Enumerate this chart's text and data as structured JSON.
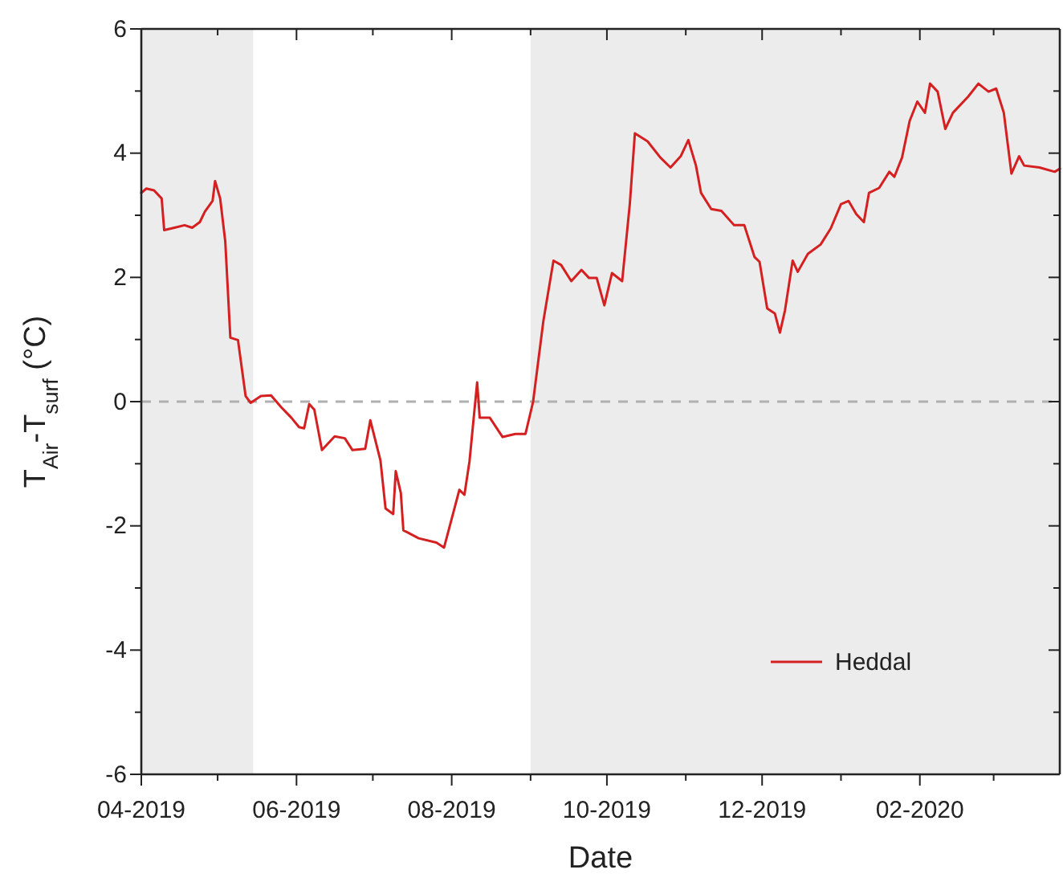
{
  "chart_data": {
    "type": "line",
    "xlabel": "Date",
    "ylabel": "T$_{Air}$-T$_{surf}$ (°C)",
    "x": [
      "2019-04-01",
      "2019-04-03",
      "2019-04-06",
      "2019-04-09",
      "2019-04-10",
      "2019-04-14",
      "2019-04-18",
      "2019-04-21",
      "2019-04-24",
      "2019-04-26",
      "2019-04-29",
      "2019-04-30",
      "2019-05-02",
      "2019-05-04",
      "2019-05-06",
      "2019-05-09",
      "2019-05-12",
      "2019-05-14",
      "2019-05-18",
      "2019-05-22",
      "2019-05-26",
      "2019-05-30",
      "2019-06-02",
      "2019-06-04",
      "2019-06-06",
      "2019-06-08",
      "2019-06-11",
      "2019-06-16",
      "2019-06-20",
      "2019-06-23",
      "2019-06-28",
      "2019-06-30",
      "2019-07-04",
      "2019-07-06",
      "2019-07-09",
      "2019-07-10",
      "2019-07-12",
      "2019-07-13",
      "2019-07-19",
      "2019-07-26",
      "2019-07-29",
      "2019-08-02",
      "2019-08-04",
      "2019-08-06",
      "2019-08-08",
      "2019-08-11",
      "2019-08-12",
      "2019-08-16",
      "2019-08-21",
      "2019-08-26",
      "2019-08-30",
      "2019-09-02",
      "2019-09-06",
      "2019-09-10",
      "2019-09-13",
      "2019-09-17",
      "2019-09-21",
      "2019-09-24",
      "2019-09-27",
      "2019-09-30",
      "2019-10-03",
      "2019-10-07",
      "2019-10-10",
      "2019-10-12",
      "2019-10-17",
      "2019-10-22",
      "2019-10-26",
      "2019-10-30",
      "2019-11-02",
      "2019-11-05",
      "2019-11-07",
      "2019-11-11",
      "2019-11-15",
      "2019-11-20",
      "2019-11-24",
      "2019-11-28",
      "2019-11-30",
      "2019-12-03",
      "2019-12-06",
      "2019-12-08",
      "2019-12-10",
      "2019-12-13",
      "2019-12-15",
      "2019-12-19",
      "2019-12-24",
      "2019-12-28",
      "2020-01-01",
      "2020-01-04",
      "2020-01-07",
      "2020-01-10",
      "2020-01-12",
      "2020-01-16",
      "2020-01-20",
      "2020-01-22",
      "2020-01-25",
      "2020-01-28",
      "2020-01-31",
      "2020-02-03",
      "2020-02-05",
      "2020-02-08",
      "2020-02-11",
      "2020-02-14",
      "2020-02-20",
      "2020-02-24",
      "2020-02-28",
      "2020-03-02",
      "2020-03-05",
      "2020-03-08",
      "2020-03-11",
      "2020-03-13",
      "2020-03-19",
      "2020-03-25",
      "2020-03-27"
    ],
    "series": [
      {
        "name": "Heddal",
        "color": "#d42020",
        "values": [
          3.36,
          3.43,
          3.4,
          3.27,
          2.76,
          2.8,
          2.84,
          2.8,
          2.89,
          3.06,
          3.23,
          3.55,
          3.27,
          2.58,
          1.03,
          0.99,
          0.09,
          -0.02,
          0.09,
          0.1,
          -0.09,
          -0.26,
          -0.41,
          -0.43,
          -0.04,
          -0.13,
          -0.78,
          -0.56,
          -0.59,
          -0.78,
          -0.76,
          -0.3,
          -0.95,
          -1.72,
          -1.81,
          -1.12,
          -1.47,
          -2.07,
          -2.2,
          -2.27,
          -2.35,
          -1.73,
          -1.42,
          -1.5,
          -0.96,
          0.31,
          -0.26,
          -0.26,
          -0.57,
          -0.52,
          -0.52,
          0.0,
          1.29,
          2.27,
          2.2,
          1.94,
          2.12,
          1.99,
          1.99,
          1.55,
          2.07,
          1.94,
          3.18,
          4.32,
          4.19,
          3.93,
          3.77,
          3.95,
          4.21,
          3.8,
          3.36,
          3.1,
          3.07,
          2.84,
          2.84,
          2.33,
          2.25,
          1.5,
          1.42,
          1.11,
          1.47,
          2.27,
          2.09,
          2.38,
          2.53,
          2.79,
          3.18,
          3.23,
          3.02,
          2.89,
          3.36,
          3.44,
          3.7,
          3.62,
          3.93,
          4.52,
          4.83,
          4.65,
          5.12,
          4.99,
          4.39,
          4.65,
          4.91,
          5.12,
          4.99,
          5.04,
          4.65,
          3.67,
          3.95,
          3.8,
          3.77,
          3.7,
          3.75
        ]
      }
    ],
    "xlim": [
      "2019-04-01",
      "2020-03-27"
    ],
    "xticks": [
      {
        "value": "2019-04",
        "label": "04-2019"
      },
      {
        "value": "2019-05",
        "label": null
      },
      {
        "value": "2019-06",
        "label": "06-2019"
      },
      {
        "value": "2019-07",
        "label": null
      },
      {
        "value": "2019-08",
        "label": "08-2019"
      },
      {
        "value": "2019-09",
        "label": null
      },
      {
        "value": "2019-10",
        "label": "10-2019"
      },
      {
        "value": "2019-11",
        "label": null
      },
      {
        "value": "2019-12",
        "label": "12-2019"
      },
      {
        "value": "2020-01",
        "label": null
      },
      {
        "value": "2020-02",
        "label": "02-2020"
      },
      {
        "value": "2020-03",
        "label": null
      }
    ],
    "ylim": [
      -6,
      6
    ],
    "yticks": [
      -6,
      {
        "value": -5,
        "label": null
      },
      -4,
      {
        "value": -3,
        "label": null
      },
      -2,
      {
        "value": -1,
        "label": null
      },
      0,
      {
        "value": 1,
        "label": null
      },
      2,
      {
        "value": 3,
        "label": null
      },
      4,
      {
        "value": 5,
        "label": null
      },
      6
    ],
    "ref_lines": [
      {
        "axis": "y",
        "value": 0,
        "color": "#b0b0b0",
        "line_style": "dashed"
      }
    ],
    "bands": [
      {
        "axis": "x",
        "from": "2019-04-01",
        "to": "2019-05-15",
        "color": "#ececec"
      },
      {
        "axis": "x",
        "from": "2019-09-01",
        "to": "2020-03-27",
        "color": "#ececec"
      }
    ],
    "legend": "bottom right",
    "line_style": "solid",
    "marker": "none"
  }
}
